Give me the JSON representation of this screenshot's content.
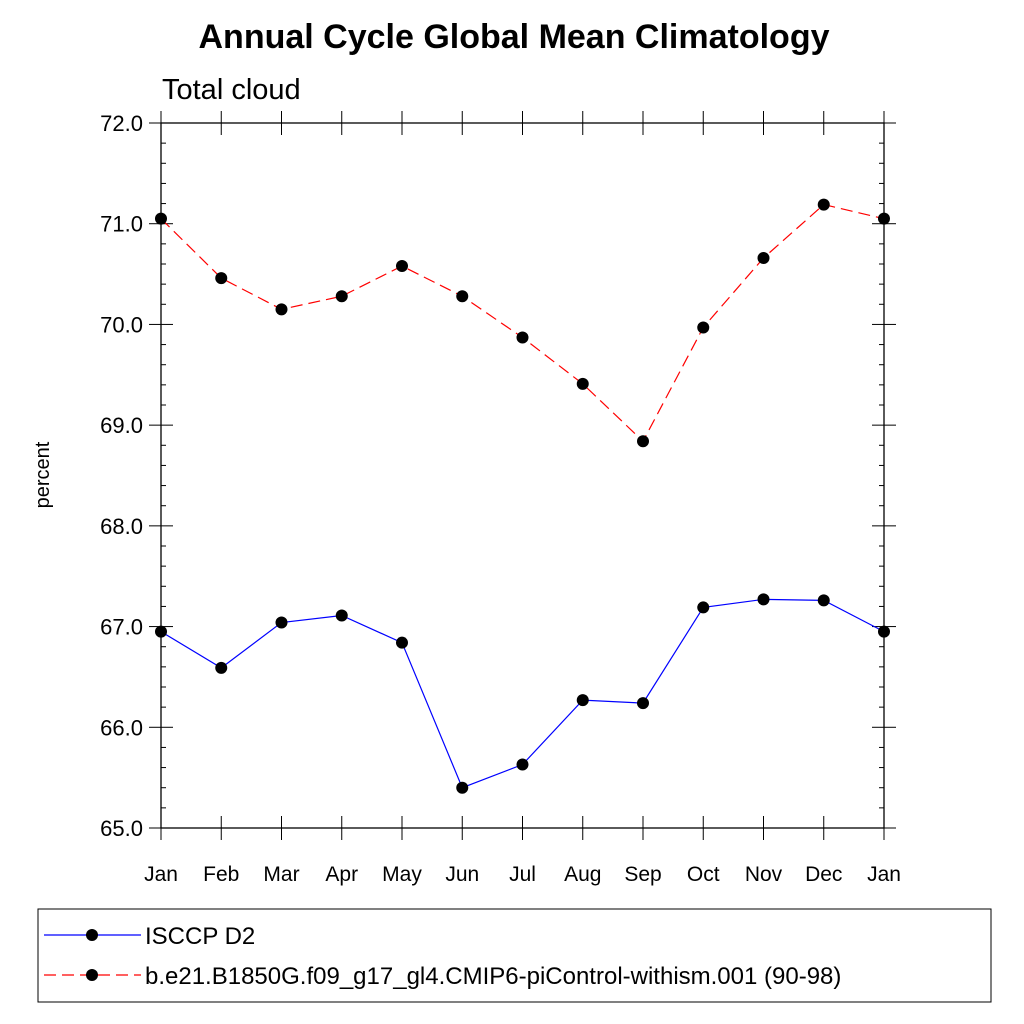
{
  "chart_data": {
    "type": "line",
    "title": "Annual Cycle Global Mean Climatology",
    "subtitle": "Total cloud",
    "xlabel": "",
    "ylabel": "percent",
    "categories": [
      "Jan",
      "Feb",
      "Mar",
      "Apr",
      "May",
      "Jun",
      "Jul",
      "Aug",
      "Sep",
      "Oct",
      "Nov",
      "Dec",
      "Jan"
    ],
    "ylim": [
      65.0,
      72.0
    ],
    "yticks": [
      "65.0",
      "66.0",
      "67.0",
      "68.0",
      "69.0",
      "70.0",
      "71.0",
      "72.0"
    ],
    "grid": false,
    "legend_position": "bottom",
    "series": [
      {
        "name": "ISCCP D2",
        "color": "#0000ff",
        "line_style": "solid",
        "marker": "filled-circle",
        "values": [
          66.95,
          66.59,
          67.04,
          67.11,
          66.84,
          65.4,
          65.63,
          66.27,
          66.24,
          67.19,
          67.27,
          67.26,
          66.95
        ]
      },
      {
        "name": "b.e21.B1850G.f09_g17_gl4.CMIP6-piControl-withism.001 (90-98)",
        "color": "#ff0000",
        "line_style": "dashed",
        "marker": "filled-circle",
        "values": [
          71.05,
          70.46,
          70.15,
          70.28,
          70.58,
          70.28,
          69.87,
          69.41,
          68.84,
          69.97,
          70.66,
          71.19,
          71.05
        ]
      }
    ]
  }
}
